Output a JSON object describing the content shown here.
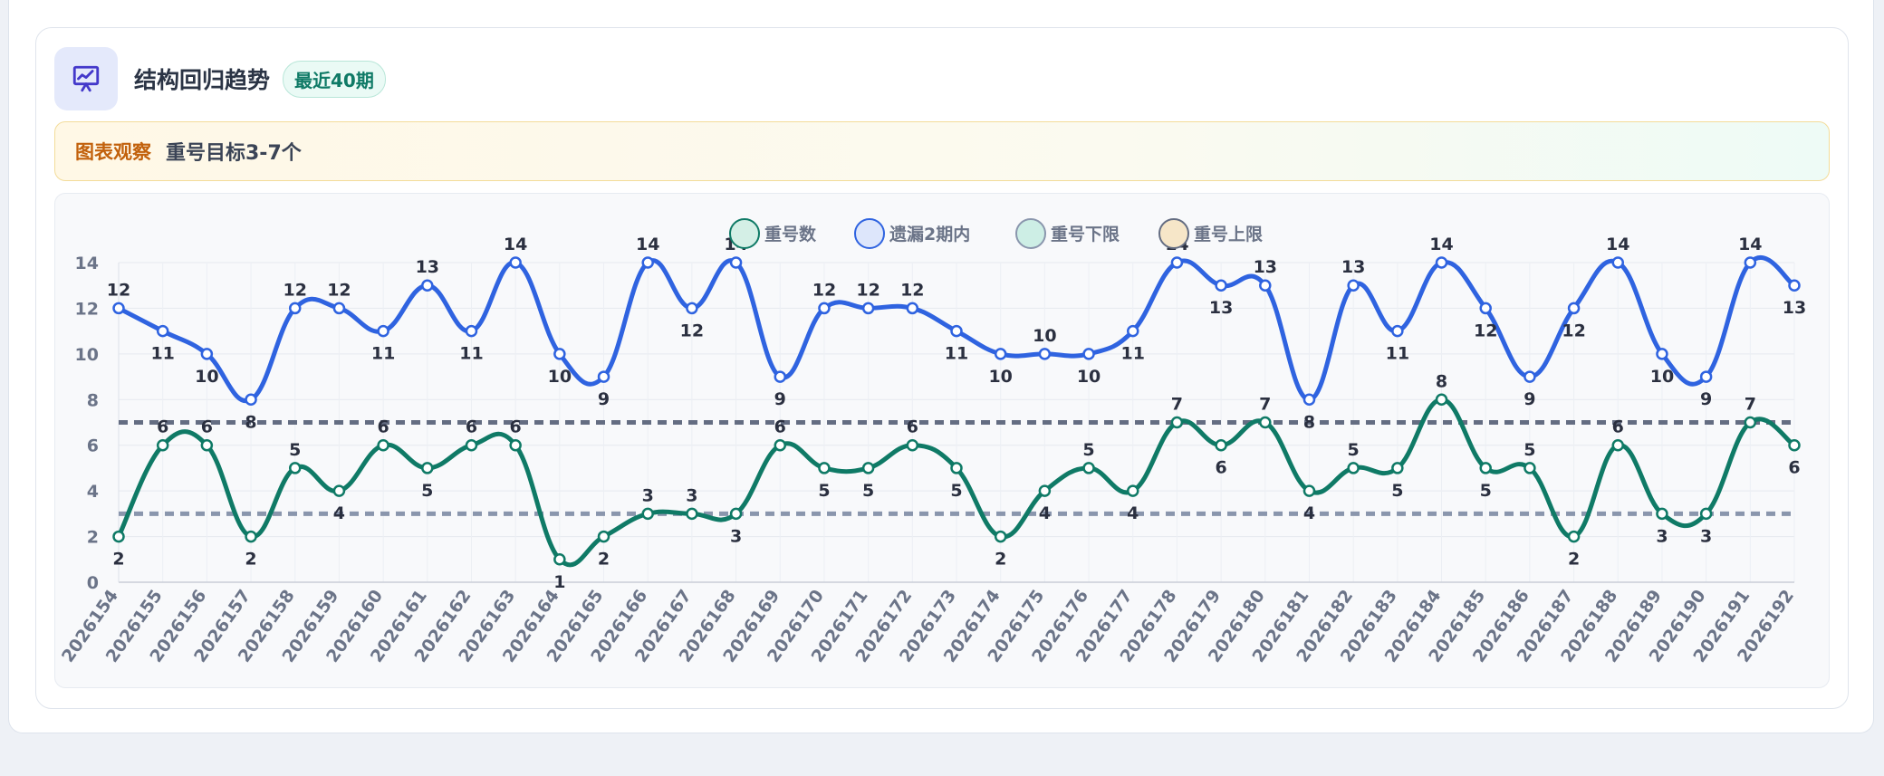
{
  "header": {
    "title": "结构回归趋势",
    "badge": "最近40期",
    "icon": "presentation-chart-icon"
  },
  "observation": {
    "label": "图表观察",
    "text": "重号目标3-7个"
  },
  "colors": {
    "repeat": "#0f7a66",
    "omit": "#2f63e0",
    "lower": "#8a96ad",
    "upper": "#646d82",
    "legend_repeat_fill": "#d4efe6",
    "legend_omit_fill": "#dde6fb",
    "legend_lower_fill": "#cdeee5",
    "legend_upper_fill": "#f6e6c8"
  },
  "chart_data": {
    "type": "line",
    "title": "",
    "xlabel": "",
    "ylabel": "",
    "ylim": [
      0,
      14
    ],
    "yticks": [
      0,
      2,
      4,
      6,
      8,
      10,
      12,
      14
    ],
    "grid": true,
    "legend_position": "top-center",
    "categories": [
      "2026154",
      "2026155",
      "2026156",
      "2026157",
      "2026158",
      "2026159",
      "2026160",
      "2026161",
      "2026162",
      "2026163",
      "2026164",
      "2026165",
      "2026166",
      "2026167",
      "2026168",
      "2026169",
      "2026170",
      "2026171",
      "2026172",
      "2026173",
      "2026174",
      "2026175",
      "2026176",
      "2026177",
      "2026178",
      "2026179",
      "2026180",
      "2026181",
      "2026182",
      "2026183",
      "2026184",
      "2026185",
      "2026186",
      "2026187",
      "2026188",
      "2026189",
      "2026190",
      "2026191",
      "2026192"
    ],
    "series": [
      {
        "name": "重号数",
        "key": "repeat",
        "values": [
          2,
          6,
          6,
          2,
          5,
          4,
          6,
          5,
          6,
          6,
          1,
          2,
          3,
          3,
          3,
          6,
          5,
          5,
          6,
          5,
          2,
          4,
          5,
          4,
          7,
          6,
          7,
          4,
          5,
          5,
          8,
          5,
          5,
          2,
          6,
          3,
          3,
          7,
          6
        ]
      },
      {
        "name": "遗漏2期内",
        "key": "omit",
        "values": [
          12,
          11,
          10,
          8,
          12,
          12,
          11,
          13,
          11,
          14,
          10,
          9,
          14,
          12,
          14,
          9,
          12,
          12,
          12,
          11,
          10,
          10,
          10,
          11,
          14,
          13,
          13,
          8,
          13,
          11,
          14,
          12,
          9,
          12,
          14,
          10,
          9,
          14,
          13
        ]
      },
      {
        "name": "重号下限",
        "key": "lower",
        "constant": 3
      },
      {
        "name": "重号上限",
        "key": "upper",
        "constant": 7
      }
    ]
  }
}
